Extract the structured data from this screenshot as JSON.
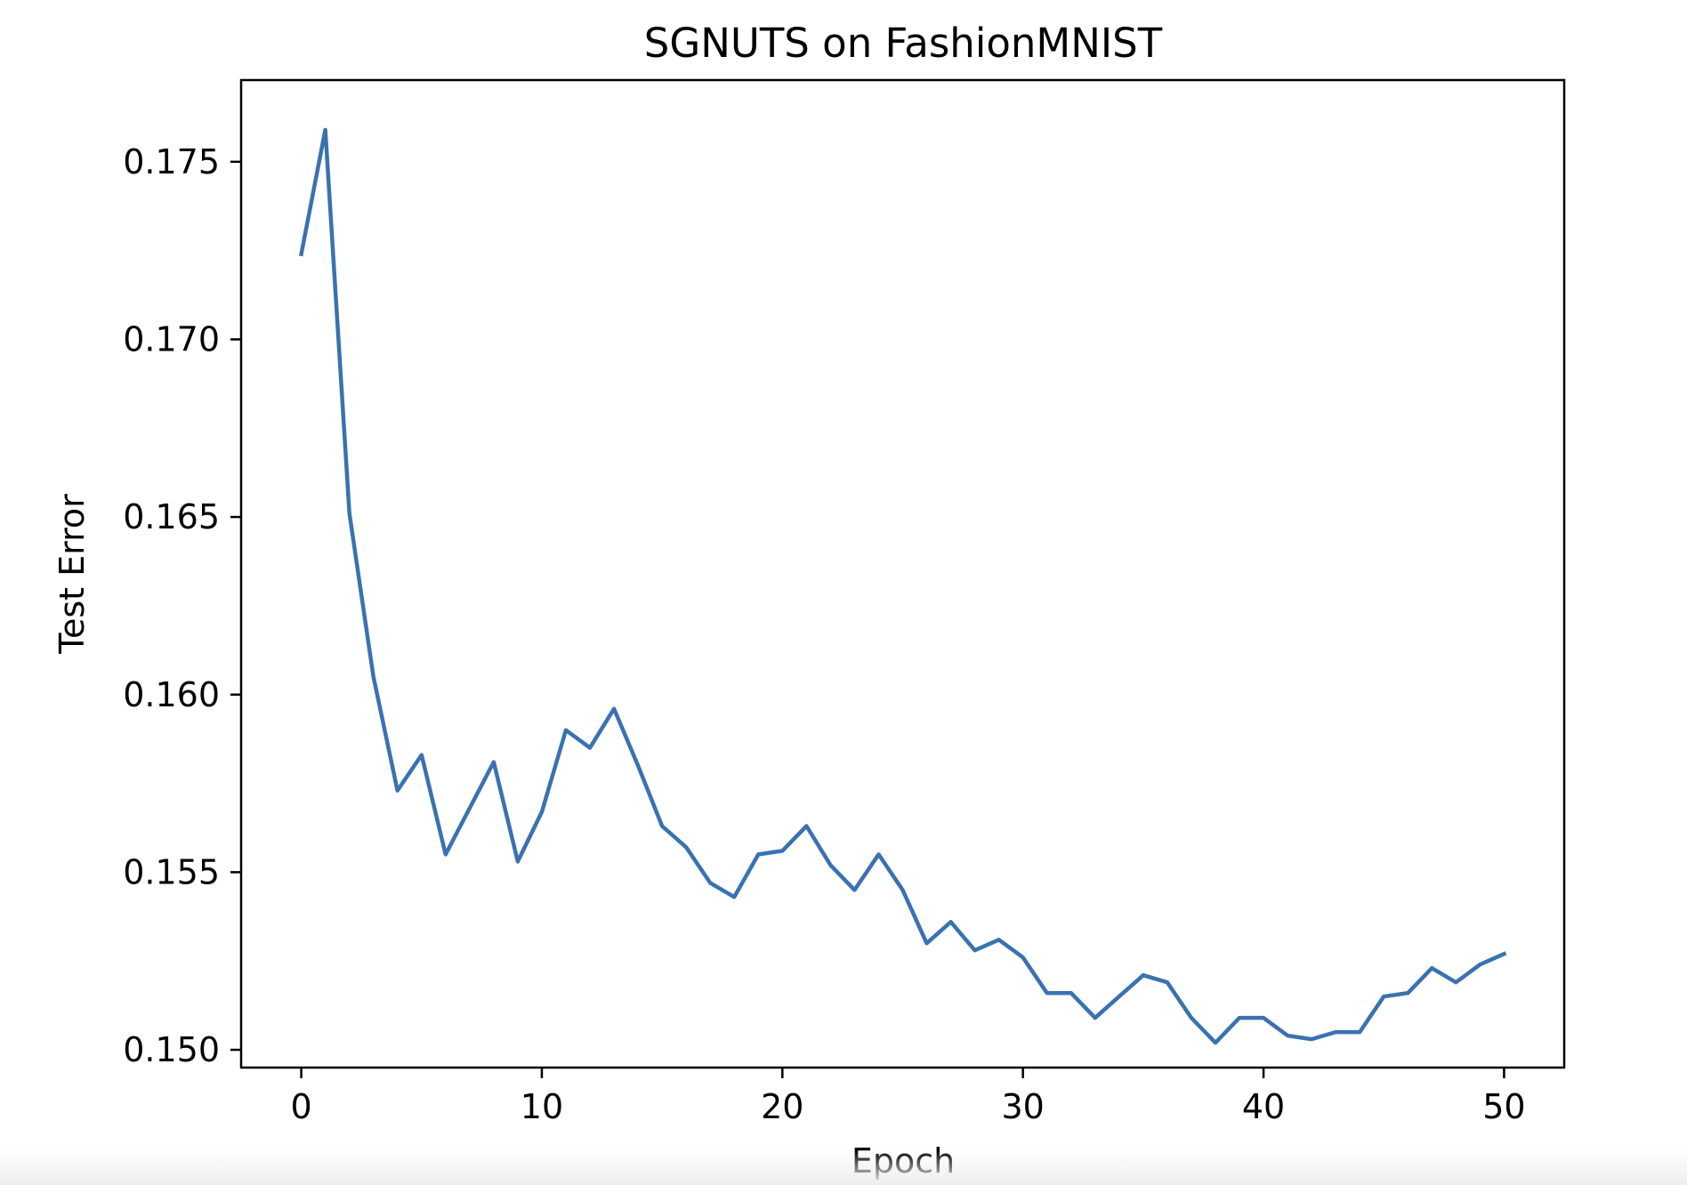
{
  "chart_data": {
    "type": "line",
    "title": "SGNUTS on FashionMNIST",
    "xlabel": "Epoch",
    "ylabel": "Test Error",
    "xlim": [
      -2.5,
      52.5
    ],
    "ylim": [
      0.1495,
      0.1773
    ],
    "xticks": [
      0,
      10,
      20,
      30,
      40,
      50
    ],
    "yticks": [
      0.15,
      0.155,
      0.16,
      0.165,
      0.17,
      0.175
    ],
    "xtick_labels": [
      "0",
      "10",
      "20",
      "30",
      "40",
      "50"
    ],
    "ytick_labels": [
      "0.150",
      "0.155",
      "0.160",
      "0.165",
      "0.170",
      "0.175"
    ],
    "grid": false,
    "series": [
      {
        "color": "#3a72b0",
        "x": [
          0,
          1,
          2,
          3,
          4,
          5,
          6,
          7,
          8,
          9,
          10,
          11,
          12,
          13,
          14,
          15,
          16,
          17,
          18,
          19,
          20,
          21,
          22,
          23,
          24,
          25,
          26,
          27,
          28,
          29,
          30,
          31,
          32,
          33,
          34,
          35,
          36,
          37,
          38,
          39,
          40,
          41,
          42,
          43,
          44,
          45,
          46,
          47,
          48,
          49,
          50
        ],
        "y": [
          0.1724,
          0.1759,
          0.1651,
          0.1605,
          0.1573,
          0.1583,
          0.1555,
          0.1568,
          0.1581,
          0.1553,
          0.1567,
          0.159,
          0.1585,
          0.1596,
          0.158,
          0.1563,
          0.1557,
          0.1547,
          0.1543,
          0.1555,
          0.1556,
          0.1563,
          0.1552,
          0.1545,
          0.1555,
          0.1545,
          0.153,
          0.1536,
          0.1528,
          0.1531,
          0.1526,
          0.1516,
          0.1516,
          0.1509,
          0.1515,
          0.1521,
          0.1519,
          0.1509,
          0.1502,
          0.1509,
          0.1509,
          0.1504,
          0.1503,
          0.1505,
          0.1505,
          0.1515,
          0.1516,
          0.1523,
          0.1519,
          0.1524,
          0.1527
        ]
      }
    ]
  }
}
